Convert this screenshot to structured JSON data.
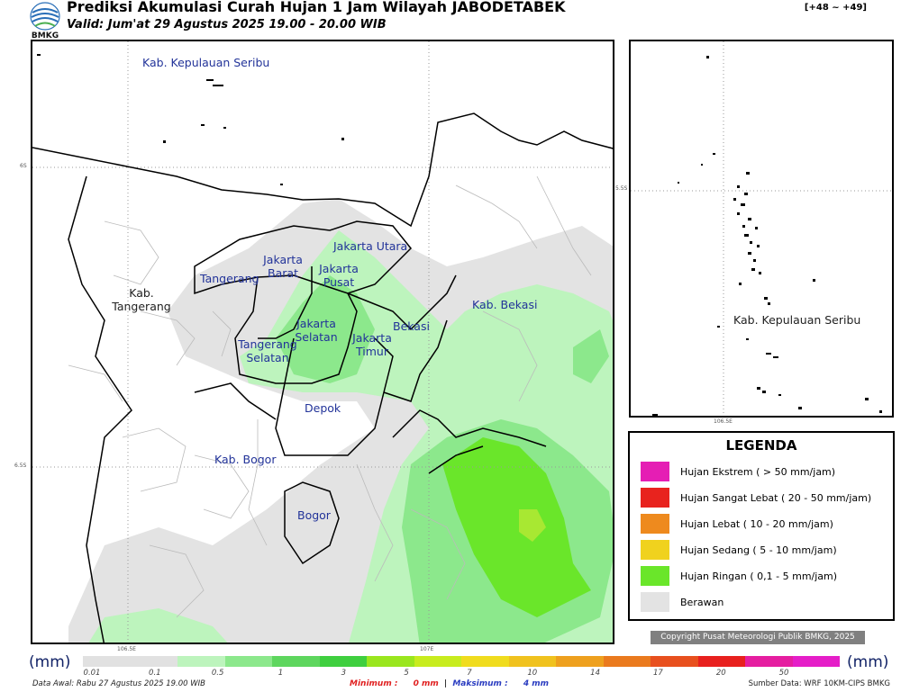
{
  "header": {
    "logo_text": "BMKG",
    "title": "Prediksi Akumulasi Curah Hujan 1 Jam Wilayah JABODETABEK",
    "valid": "Valid: Jum'at 29 Agustus 2025 19.00 - 20.00 WIB",
    "range": "[+48 ~ +49]"
  },
  "map": {
    "regions": [
      {
        "name": "Kab. Kepulauan Seribu"
      },
      {
        "name": "Jakarta Utara"
      },
      {
        "name": "Jakarta Barat"
      },
      {
        "name": "Jakarta Pusat"
      },
      {
        "name": "Tangerang"
      },
      {
        "name": "Kab. Tangerang"
      },
      {
        "name": "Jakarta Selatan"
      },
      {
        "name": "Jakarta Timur"
      },
      {
        "name": "Tangerang Selatan"
      },
      {
        "name": "Bekasi"
      },
      {
        "name": "Kab. Bekasi"
      },
      {
        "name": "Depok"
      },
      {
        "name": "Kab. Bogor"
      },
      {
        "name": "Bogor"
      }
    ],
    "grid_labels": {
      "lat_top": "6S",
      "lat_bottom": "6.5S",
      "lon_left": "106.5E",
      "lon_right": "107E"
    }
  },
  "inset": {
    "label": "Kab. Kepulauan Seribu",
    "grid_labels": {
      "lat": "5.5S",
      "lon": "106.5E"
    }
  },
  "legend": {
    "title": "LEGENDA",
    "items": [
      {
        "label": "Hujan Ekstrem ( > 50 mm/jam)",
        "color": "#e51eb4"
      },
      {
        "label": "Hujan Sangat Lebat ( 20 - 50 mm/jam)",
        "color": "#e8231e"
      },
      {
        "label": "Hujan Lebat ( 10 - 20 mm/jam)",
        "color": "#ee8a1e"
      },
      {
        "label": "Hujan Sedang ( 5 - 10 mm/jam)",
        "color": "#f0d21e"
      },
      {
        "label": "Hujan Ringan ( 0,1 - 5 mm/jam)",
        "color": "#6ae62a"
      },
      {
        "label": "Berawan",
        "color": "#e3e3e3"
      }
    ]
  },
  "copyright": "Copyright Pusat Meteorologi Publik BMKG, 2025",
  "colorbar": {
    "unit": "(mm)",
    "ticks": [
      "0.01",
      "0.1",
      "0.5",
      "1",
      "3",
      "5",
      "7",
      "10",
      "14",
      "17",
      "20",
      "50"
    ],
    "colors": [
      "#e1e1e1",
      "#e1e1e1",
      "#bdf4bd",
      "#8ce88c",
      "#5ed65e",
      "#3fcf3f",
      "#9ae61e",
      "#c8ec1e",
      "#f0dc1e",
      "#f0c21e",
      "#eea01e",
      "#ea7a1e",
      "#e8501e",
      "#e8201e",
      "#e51ea0",
      "#e51ec8"
    ]
  },
  "footer": {
    "data_awal": "Data Awal: Rabu 27 Agustus 2025 19.00 WIB",
    "min_label": "Minimum :",
    "min_value": "0 mm",
    "separator": "|",
    "max_label": "Maksimum :",
    "max_value": "4 mm",
    "source": "Sumber Data: WRF 10KM-CIPS BMKG"
  }
}
